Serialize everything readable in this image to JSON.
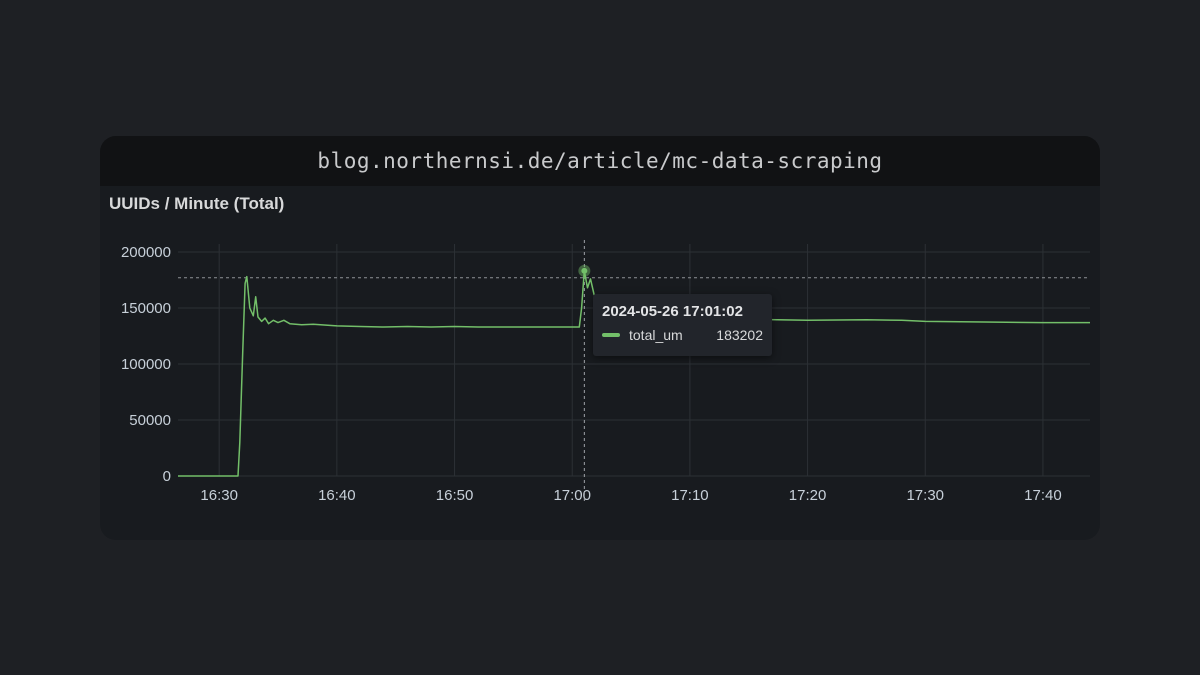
{
  "url": "blog.northernsi.de/article/mc-data-scraping",
  "panel": {
    "title": "UUIDs / Minute (Total)"
  },
  "colors": {
    "series": "#73bf69",
    "grid": "#2c3035",
    "threshold": "#8e9196",
    "cursor": "#9fa3a8"
  },
  "tooltip": {
    "time": "2024-05-26 17:01:02",
    "series_name": "total_um",
    "value": "183202"
  },
  "chart_data": {
    "type": "line",
    "title": "UUIDs / Minute (Total)",
    "x_unit": "minutes after 16:00 (2024-05-26)",
    "xlim": [
      26.5,
      104
    ],
    "ylim": [
      0,
      200000
    ],
    "x_ticks": [
      {
        "x": 30,
        "label": "16:30"
      },
      {
        "x": 40,
        "label": "16:40"
      },
      {
        "x": 50,
        "label": "16:50"
      },
      {
        "x": 60,
        "label": "17:00"
      },
      {
        "x": 70,
        "label": "17:10"
      },
      {
        "x": 80,
        "label": "17:20"
      },
      {
        "x": 90,
        "label": "17:30"
      },
      {
        "x": 100,
        "label": "17:40"
      }
    ],
    "y_ticks": [
      {
        "y": 0,
        "label": "0"
      },
      {
        "y": 50000,
        "label": "50000"
      },
      {
        "y": 100000,
        "label": "100000"
      },
      {
        "y": 150000,
        "label": "150000"
      },
      {
        "y": 200000,
        "label": "200000"
      }
    ],
    "threshold_y": 177000,
    "cursor_x": 61.03,
    "highlight_point": {
      "x": 61.03,
      "y": 183202
    },
    "series": [
      {
        "name": "total_um",
        "points": [
          [
            26.5,
            0
          ],
          [
            31.6,
            0
          ],
          [
            31.75,
            30000
          ],
          [
            32.0,
            110000
          ],
          [
            32.2,
            172000
          ],
          [
            32.35,
            178000
          ],
          [
            32.6,
            150000
          ],
          [
            32.9,
            143000
          ],
          [
            33.1,
            160000
          ],
          [
            33.3,
            142000
          ],
          [
            33.6,
            138000
          ],
          [
            33.9,
            141000
          ],
          [
            34.2,
            136000
          ],
          [
            34.6,
            139000
          ],
          [
            35.0,
            137000
          ],
          [
            35.5,
            139000
          ],
          [
            36.0,
            136000
          ],
          [
            37,
            135000
          ],
          [
            38,
            135500
          ],
          [
            40,
            134000
          ],
          [
            42,
            133500
          ],
          [
            44,
            133000
          ],
          [
            46,
            133500
          ],
          [
            48,
            133000
          ],
          [
            50,
            133500
          ],
          [
            52,
            133000
          ],
          [
            55,
            133000
          ],
          [
            58,
            133000
          ],
          [
            60.6,
            133000
          ],
          [
            60.8,
            150000
          ],
          [
            61.03,
            183202
          ],
          [
            61.3,
            168000
          ],
          [
            61.55,
            176000
          ],
          [
            61.9,
            160000
          ],
          [
            62.3,
            150000
          ],
          [
            63,
            145000
          ],
          [
            65,
            143000
          ],
          [
            70,
            141000
          ],
          [
            75,
            140000
          ],
          [
            80,
            139000
          ],
          [
            85,
            139500
          ],
          [
            88,
            139000
          ],
          [
            90,
            138000
          ],
          [
            95,
            137500
          ],
          [
            100,
            137000
          ],
          [
            104,
            137000
          ]
        ]
      }
    ]
  }
}
